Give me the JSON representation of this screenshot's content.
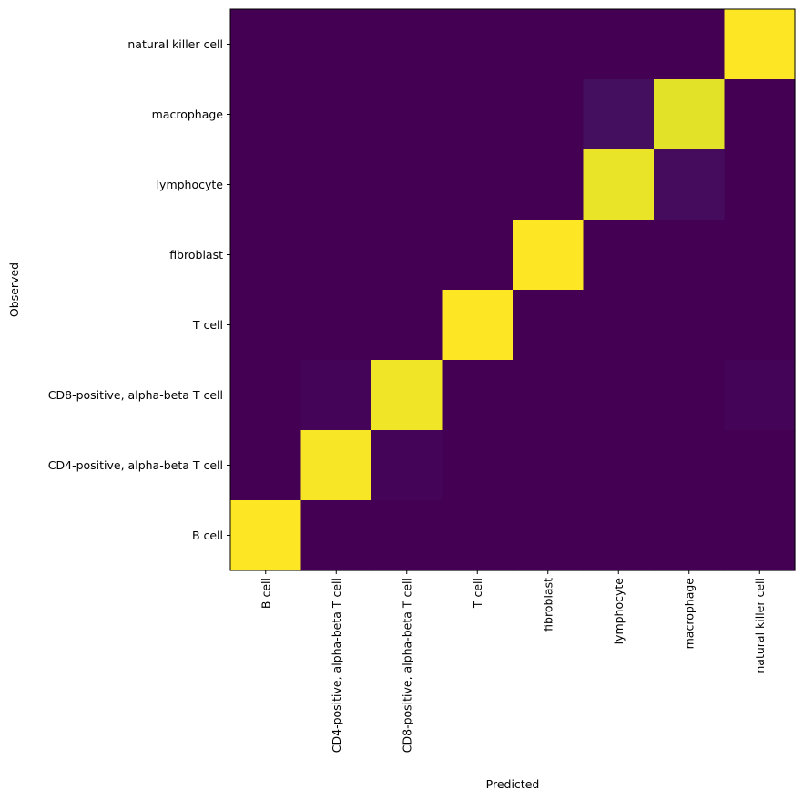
{
  "chart_data": {
    "type": "heatmap",
    "title": "",
    "xlabel": "Predicted",
    "ylabel": "Observed",
    "x_categories": [
      "B cell",
      "CD4-positive, alpha-beta T cell",
      "CD8-positive, alpha-beta T cell",
      "T cell",
      "fibroblast",
      "lymphocyte",
      "macrophage",
      "natural killer cell"
    ],
    "y_categories_top_to_bottom": [
      "natural killer cell",
      "macrophage",
      "lymphocyte",
      "fibroblast",
      "T cell",
      "CD8-positive, alpha-beta T cell",
      "CD4-positive, alpha-beta T cell",
      "B cell"
    ],
    "values": [
      [
        0.0,
        0.0,
        0.0,
        0.0,
        0.0,
        0.0,
        0.0,
        1.0
      ],
      [
        0.0,
        0.0,
        0.0,
        0.0,
        0.0,
        0.04,
        0.96,
        0.0
      ],
      [
        0.0,
        0.0,
        0.0,
        0.0,
        0.0,
        0.97,
        0.03,
        0.0
      ],
      [
        0.0,
        0.0,
        0.0,
        0.0,
        1.0,
        0.0,
        0.0,
        0.0
      ],
      [
        0.0,
        0.0,
        0.0,
        1.0,
        0.0,
        0.0,
        0.0,
        0.0
      ],
      [
        0.0,
        0.01,
        0.98,
        0.0,
        0.0,
        0.0,
        0.0,
        0.01
      ],
      [
        0.0,
        0.99,
        0.01,
        0.0,
        0.0,
        0.0,
        0.0,
        0.0
      ],
      [
        1.0,
        0.0,
        0.0,
        0.0,
        0.0,
        0.0,
        0.0,
        0.0
      ]
    ],
    "colormap": "viridis",
    "value_range": [
      0,
      1
    ],
    "colors": {
      "low": "#440154",
      "high": "#fde725"
    },
    "grid": false,
    "colorbar": false
  }
}
